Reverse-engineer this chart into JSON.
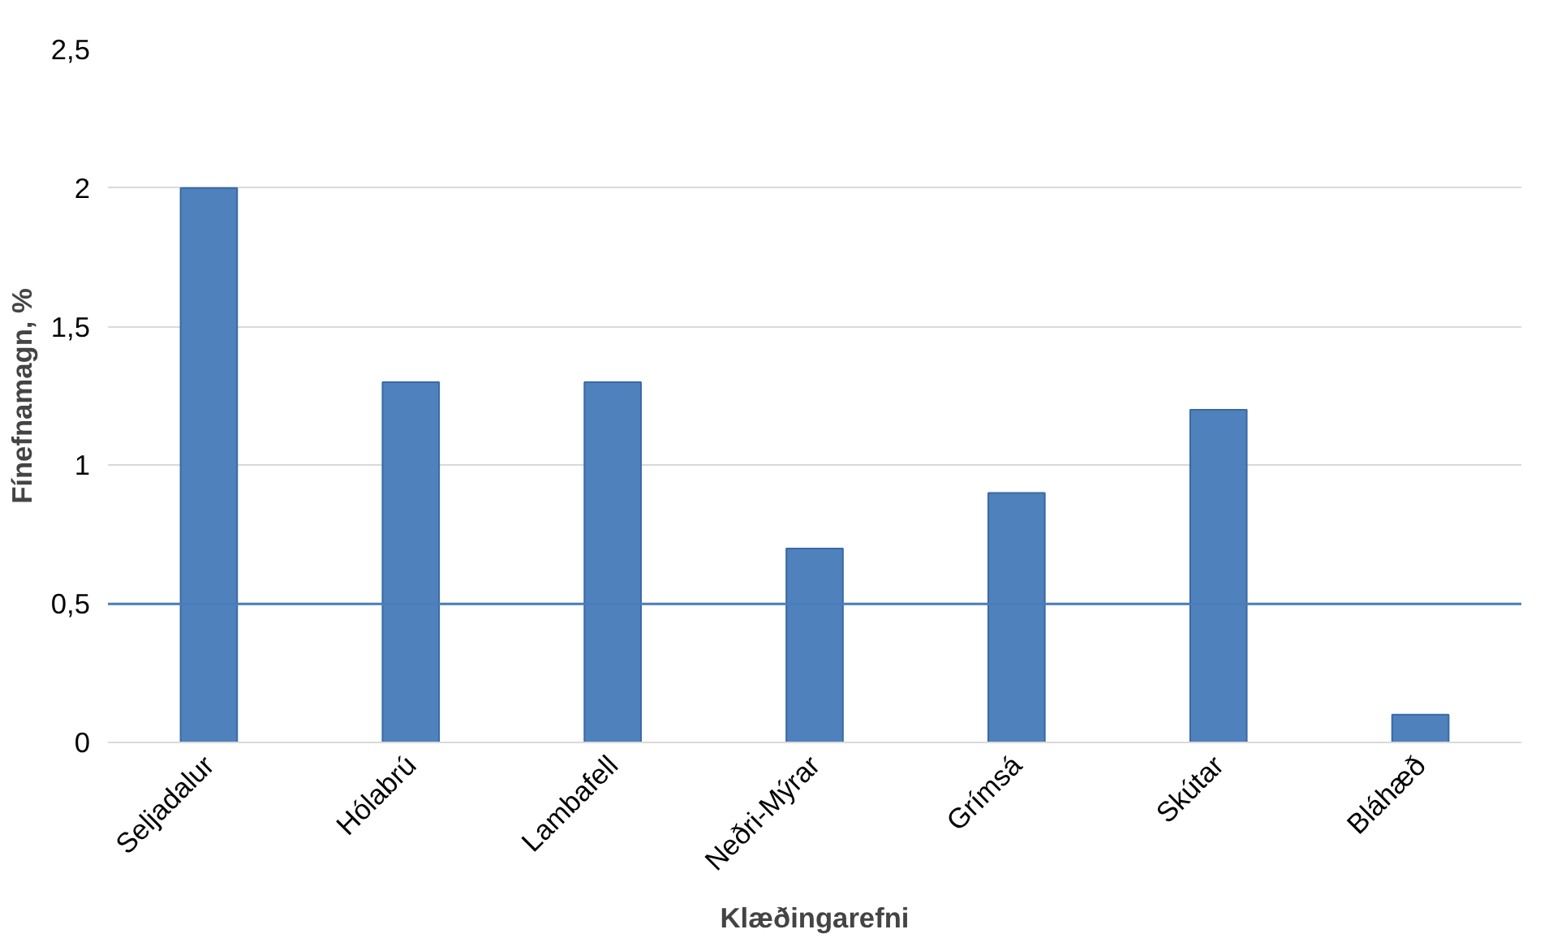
{
  "chart_data": {
    "type": "bar",
    "xlabel": "Klæðingarefni",
    "ylabel": "Fínefnamagn, %",
    "categories": [
      "Seljadalur",
      "Hólabrú",
      "Lambafell",
      "Neðri-Mýrar",
      "Grímsá",
      "Skútar",
      "Bláhæð"
    ],
    "values": [
      2.0,
      1.3,
      1.3,
      0.7,
      0.9,
      1.2,
      0.1
    ],
    "color": "#4f81bd",
    "ylim": [
      0,
      2.5
    ],
    "yticks": [
      0,
      {
        "value": 0.5,
        "label": "0,5"
      },
      1,
      {
        "value": 1.5,
        "label": "1,5"
      },
      2,
      {
        "value": 2.5,
        "label": "2,5"
      }
    ],
    "grid": "y",
    "ref_lines": [
      {
        "axis": "y",
        "value": 0.5,
        "color": "#4a7ebb"
      }
    ]
  }
}
